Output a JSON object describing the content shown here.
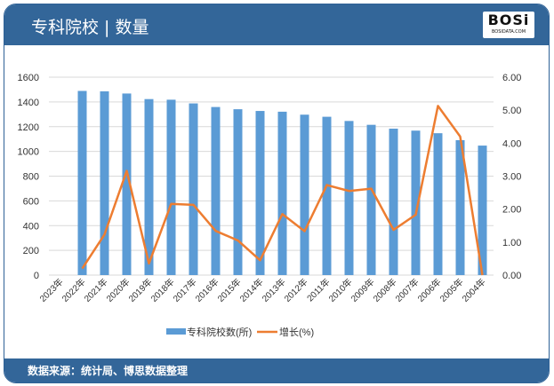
{
  "header": {
    "title": "专科院校 | 数量",
    "logo_text": "BOSi",
    "logo_sub": "BOSIDATA.COM"
  },
  "footer": {
    "source": "数据来源：统计局、博思数据整理"
  },
  "colors": {
    "bar": "#5b9bd5",
    "line": "#ed7d31",
    "header": "#336699"
  },
  "chart_data": {
    "type": "bar+line",
    "categories": [
      "2023年",
      "2022年",
      "2021年",
      "2020年",
      "2019年",
      "2018年",
      "2017年",
      "2016年",
      "2015年",
      "2014年",
      "2013年",
      "2012年",
      "2011年",
      "2010年",
      "2009年",
      "2008年",
      "2007年",
      "2006年",
      "2005年",
      "2004年"
    ],
    "series": [
      {
        "name": "专科院校数(所)",
        "type": "bar",
        "axis": "left",
        "values": [
          null,
          1489,
          1486,
          1468,
          1423,
          1418,
          1388,
          1359,
          1341,
          1327,
          1321,
          1297,
          1280,
          1246,
          1215,
          1184,
          1168,
          1147,
          1091,
          1047
        ]
      },
      {
        "name": "增长(%)",
        "type": "line",
        "axis": "right",
        "values": [
          null,
          0.2,
          1.23,
          3.16,
          0.35,
          2.16,
          2.13,
          1.34,
          1.05,
          0.45,
          1.85,
          1.33,
          2.73,
          2.55,
          2.62,
          1.37,
          1.83,
          5.13,
          4.2,
          0
        ]
      }
    ],
    "left_axis": {
      "min": 0,
      "max": 1600,
      "ticks": [
        "0",
        "200",
        "400",
        "600",
        "800",
        "1000",
        "1200",
        "1400",
        "1600"
      ]
    },
    "right_axis": {
      "min": 0,
      "max": 6,
      "ticks": [
        "0.00",
        "1.00",
        "2.00",
        "3.00",
        "4.00",
        "5.00",
        "6.00"
      ]
    },
    "grid": true,
    "legend": "bottom"
  }
}
